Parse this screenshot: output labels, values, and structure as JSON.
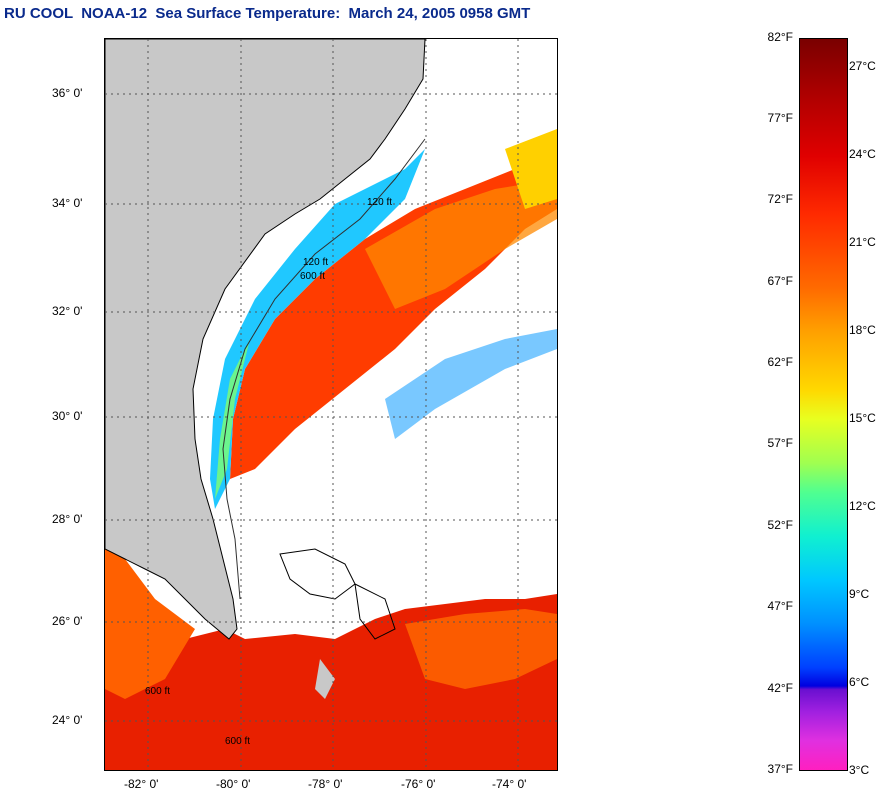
{
  "title": "RU COOL  NOAA-12  Sea Surface Temperature:  March 24, 2005 0958 GMT",
  "map": {
    "lat_labels": [
      "36° 0'",
      "34° 0'",
      "32° 0'",
      "30° 0'",
      "28° 0'",
      "26° 0'",
      "24° 0'"
    ],
    "lon_labels": [
      "-82° 0'",
      "-80° 0'",
      "-78° 0'",
      "-76° 0'",
      "-74° 0'"
    ],
    "contour_labels": [
      "120 ft",
      "600 ft",
      "120 ft",
      "600 ft",
      "600 ft"
    ],
    "colors": {
      "land": "#c8c8c8",
      "cloud": "#ffffff",
      "gulf_stream": "#ff4000",
      "shelf_cold": "#30c0ff",
      "shelf_mid": "#80ff80",
      "warm_south": "#e82000"
    }
  },
  "colorbar": {
    "fahrenheit_labels": [
      "82°F",
      "77°F",
      "72°F",
      "67°F",
      "62°F",
      "57°F",
      "52°F",
      "47°F",
      "42°F",
      "37°F"
    ],
    "celsius_labels": [
      "27°C",
      "24°C",
      "21°C",
      "18°C",
      "15°C",
      "12°C",
      "9°C",
      "6°C",
      "3°C"
    ]
  }
}
